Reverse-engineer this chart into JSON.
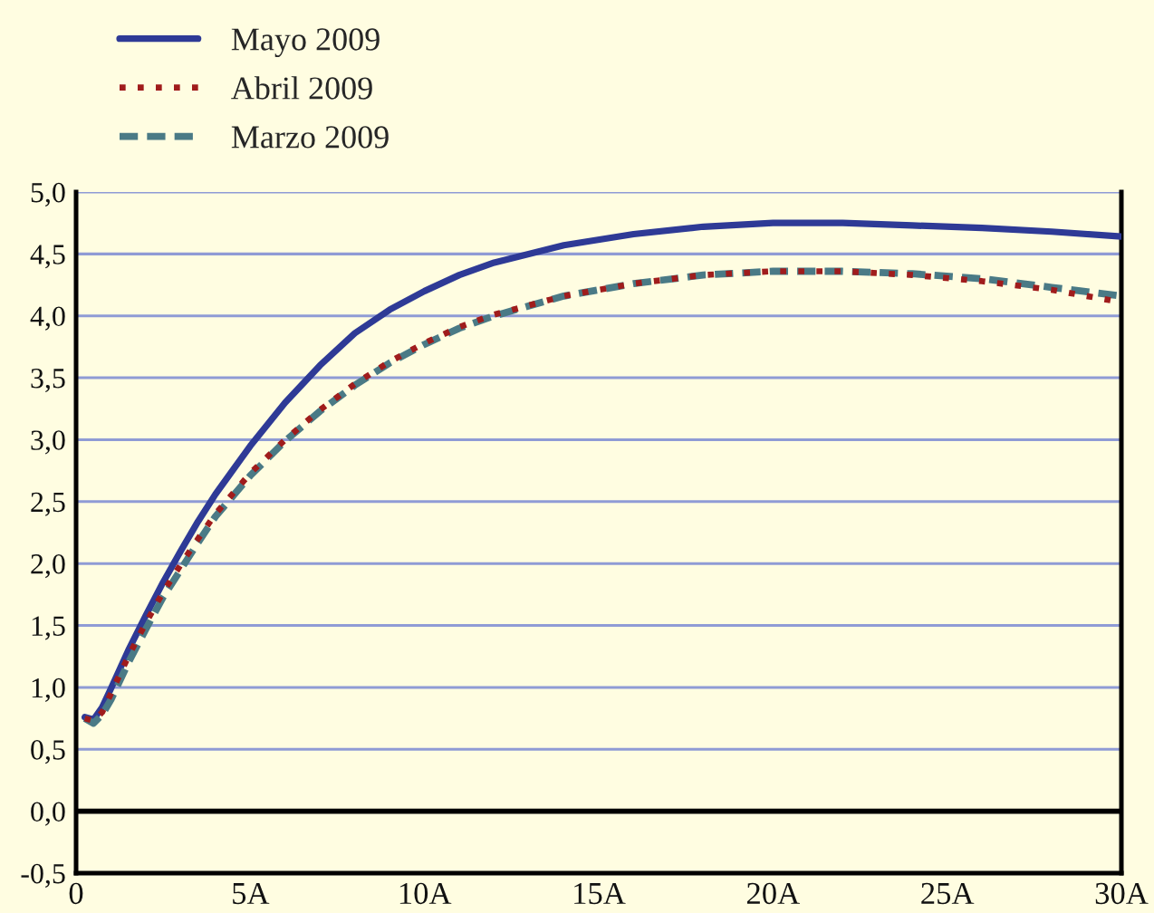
{
  "chart_data": {
    "type": "line",
    "x": [
      0.25,
      0.5,
      0.75,
      1,
      1.5,
      2,
      2.5,
      3,
      3.5,
      4,
      5,
      6,
      7,
      8,
      9,
      10,
      11,
      12,
      14,
      16,
      18,
      20,
      22,
      24,
      26,
      28,
      30
    ],
    "series": [
      {
        "name": "Mayo 2009",
        "color": "#2e3a96",
        "line_style": "solid",
        "values": [
          0.76,
          0.74,
          0.84,
          0.99,
          1.3,
          1.58,
          1.85,
          2.1,
          2.34,
          2.56,
          2.95,
          3.3,
          3.6,
          3.86,
          4.05,
          4.2,
          4.33,
          4.43,
          4.57,
          4.66,
          4.72,
          4.75,
          4.75,
          4.73,
          4.71,
          4.68,
          4.64
        ]
      },
      {
        "name": "Abril 2009",
        "color": "#a01c1c",
        "line_style": "dotted",
        "values": [
          0.75,
          0.73,
          0.8,
          0.95,
          1.25,
          1.52,
          1.77,
          1.99,
          2.2,
          2.4,
          2.73,
          3.0,
          3.24,
          3.45,
          3.63,
          3.78,
          3.91,
          4.01,
          4.16,
          4.26,
          4.33,
          4.36,
          4.36,
          4.33,
          4.28,
          4.21,
          4.11
        ]
      },
      {
        "name": "Marzo 2009",
        "color": "#4a7a86",
        "line_style": "dashed",
        "values": [
          0.75,
          0.71,
          0.78,
          0.9,
          1.2,
          1.47,
          1.73,
          1.95,
          2.17,
          2.38,
          2.71,
          2.99,
          3.23,
          3.44,
          3.62,
          3.77,
          3.9,
          4.0,
          4.16,
          4.26,
          4.33,
          4.36,
          4.36,
          4.34,
          4.3,
          4.23,
          4.16
        ]
      }
    ],
    "xlim": [
      0,
      30
    ],
    "xticks": [
      0,
      {
        "value": 5,
        "label": "5A"
      },
      {
        "value": 10,
        "label": "10A"
      },
      {
        "value": 15,
        "label": "15A"
      },
      {
        "value": 20,
        "label": "20A"
      },
      {
        "value": 25,
        "label": "25A"
      },
      {
        "value": 30,
        "label": "30A"
      }
    ],
    "ylim": [
      -0.5,
      5.0
    ],
    "yticks": [
      {
        "value": -0.5,
        "label": "-0,5"
      },
      {
        "value": 0,
        "label": "0,0"
      },
      {
        "value": 0.5,
        "label": "0,5"
      },
      {
        "value": 1.0,
        "label": "1,0"
      },
      {
        "value": 1.5,
        "label": "1,5"
      },
      {
        "value": 2.0,
        "label": "2,0"
      },
      {
        "value": 2.5,
        "label": "2,5"
      },
      {
        "value": 3.0,
        "label": "3,0"
      },
      {
        "value": 3.5,
        "label": "3,5"
      },
      {
        "value": 4.0,
        "label": "4,0"
      },
      {
        "value": 4.5,
        "label": "4,5"
      },
      {
        "value": 5.0,
        "label": "5,0"
      }
    ],
    "grid": "y",
    "legend": "top left",
    "ref_lines": [
      {
        "axis": "y",
        "value": 0,
        "color": "#000000"
      }
    ]
  }
}
